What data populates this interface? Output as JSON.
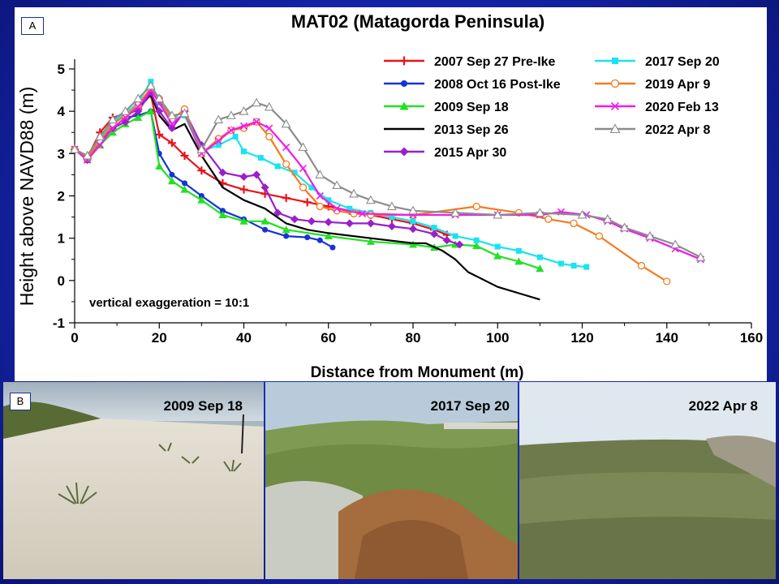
{
  "panels": {
    "a_label": "A",
    "b_label": "B"
  },
  "chart_data": {
    "type": "line",
    "title": "MAT02 (Matagorda Peninsula)",
    "xlabel": "Distance from Monument (m)",
    "ylabel": "Height above NAVD88 (m)",
    "xlim": [
      0,
      160
    ],
    "ylim": [
      -1,
      5
    ],
    "xticks": [
      "0",
      "20",
      "40",
      "60",
      "80",
      "100",
      "120",
      "140",
      "160"
    ],
    "yticks": [
      "-1",
      "0",
      "1",
      "2",
      "3",
      "4",
      "5"
    ],
    "annotation": "vertical exaggeration = 10:1",
    "series": [
      {
        "name": "2007 Sep 27 Pre-Ike",
        "color": "#e8141c",
        "marker": "plus",
        "x": [
          0,
          3,
          6,
          9,
          12,
          15,
          18,
          20,
          23,
          26,
          30,
          35,
          40,
          45,
          50,
          55,
          60,
          65,
          70,
          75,
          80,
          85,
          88
        ],
        "y": [
          3.1,
          2.9,
          3.5,
          3.85,
          3.95,
          4.05,
          4.4,
          3.45,
          3.25,
          2.95,
          2.6,
          2.3,
          2.15,
          2.05,
          1.95,
          1.85,
          1.75,
          1.65,
          1.55,
          1.45,
          1.35,
          1.2,
          1.08
        ]
      },
      {
        "name": "2008 Oct 16 Post-Ike",
        "color": "#1433d8",
        "marker": "circle",
        "x": [
          0,
          3,
          6,
          9,
          12,
          15,
          18,
          20,
          23,
          26,
          30,
          35,
          40,
          45,
          50,
          55,
          58,
          61
        ],
        "y": [
          3.1,
          2.85,
          3.3,
          3.8,
          3.85,
          3.9,
          4.0,
          3.0,
          2.5,
          2.3,
          2.0,
          1.65,
          1.45,
          1.2,
          1.05,
          1.02,
          0.95,
          0.78
        ]
      },
      {
        "name": "2009 Sep 18",
        "color": "#22e022",
        "marker": "triangle",
        "x": [
          0,
          3,
          6,
          9,
          12,
          15,
          18,
          20,
          23,
          26,
          30,
          35,
          40,
          45,
          50,
          60,
          70,
          80,
          85,
          90,
          95,
          100,
          105,
          110
        ],
        "y": [
          3.1,
          2.85,
          3.2,
          3.5,
          3.7,
          3.85,
          4.0,
          2.7,
          2.35,
          2.15,
          1.9,
          1.55,
          1.4,
          1.4,
          1.2,
          1.05,
          0.92,
          0.85,
          0.78,
          0.85,
          0.82,
          0.58,
          0.45,
          0.28
        ]
      },
      {
        "name": "2013 Sep 26",
        "color": "#000000",
        "marker": "none",
        "x": [
          0,
          3,
          6,
          9,
          12,
          15,
          18,
          20,
          23,
          26,
          30,
          35,
          40,
          45,
          50,
          55,
          60,
          70,
          80,
          83,
          87,
          90,
          93,
          97,
          100,
          105,
          110
        ],
        "y": [
          3.1,
          2.9,
          3.35,
          3.75,
          3.9,
          4.05,
          4.4,
          3.9,
          3.55,
          3.7,
          2.95,
          2.2,
          1.9,
          1.7,
          1.35,
          1.2,
          1.12,
          1.0,
          0.88,
          0.88,
          0.7,
          0.5,
          0.2,
          0.0,
          -0.15,
          -0.3,
          -0.45
        ]
      },
      {
        "name": "2015 Apr 30",
        "color": "#9a1fc9",
        "marker": "diamond",
        "x": [
          0,
          3,
          6,
          9,
          12,
          15,
          18,
          20,
          23,
          26,
          30,
          35,
          40,
          43,
          45,
          48,
          52,
          56,
          60,
          65,
          70,
          75,
          80,
          85,
          88,
          91
        ],
        "y": [
          3.1,
          2.85,
          3.3,
          3.6,
          3.75,
          4.0,
          4.45,
          4.0,
          3.6,
          4.0,
          3.2,
          2.55,
          2.45,
          2.5,
          2.2,
          1.6,
          1.45,
          1.4,
          1.38,
          1.35,
          1.35,
          1.28,
          1.22,
          1.1,
          0.95,
          0.85
        ]
      },
      {
        "name": "2017 Sep 20",
        "color": "#19e3f0",
        "marker": "square",
        "x": [
          0,
          3,
          6,
          9,
          12,
          15,
          18,
          20,
          23,
          26,
          30,
          34,
          38,
          40,
          44,
          48,
          52,
          56,
          60,
          65,
          70,
          75,
          80,
          85,
          90,
          95,
          100,
          105,
          110,
          115,
          118,
          121
        ],
        "y": [
          3.1,
          2.9,
          3.35,
          3.75,
          3.95,
          4.2,
          4.7,
          4.2,
          3.8,
          3.9,
          3.05,
          3.2,
          3.4,
          3.05,
          2.9,
          2.7,
          2.55,
          2.2,
          1.9,
          1.7,
          1.6,
          1.5,
          1.4,
          1.25,
          1.05,
          0.95,
          0.8,
          0.7,
          0.55,
          0.4,
          0.35,
          0.32
        ]
      },
      {
        "name": "2019 Apr 9",
        "color": "#f47a1e",
        "marker": "circle-open",
        "x": [
          0,
          3,
          6,
          9,
          12,
          15,
          18,
          20,
          23,
          26,
          30,
          34,
          37,
          40,
          43,
          46,
          50,
          54,
          58,
          62,
          66,
          70,
          80,
          95,
          105,
          112,
          118,
          124,
          134,
          140
        ],
        "y": [
          3.1,
          2.9,
          3.3,
          3.7,
          3.9,
          4.15,
          4.55,
          4.3,
          3.8,
          4.05,
          3.0,
          3.35,
          3.55,
          3.6,
          3.75,
          3.4,
          2.75,
          2.2,
          1.75,
          1.65,
          1.58,
          1.55,
          1.55,
          1.75,
          1.6,
          1.45,
          1.35,
          1.05,
          0.35,
          -0.02
        ]
      },
      {
        "name": "2020 Feb 13",
        "color": "#f01ce8",
        "marker": "x",
        "x": [
          0,
          3,
          6,
          9,
          12,
          15,
          18,
          20,
          23,
          26,
          30,
          34,
          37,
          40,
          43,
          46,
          50,
          54,
          58,
          62,
          68,
          80,
          90,
          100,
          110,
          115,
          121,
          126,
          130,
          136,
          142,
          148
        ],
        "y": [
          3.1,
          2.85,
          3.2,
          3.6,
          3.85,
          4.1,
          4.5,
          4.2,
          3.7,
          3.95,
          3.0,
          3.3,
          3.55,
          3.65,
          3.75,
          3.6,
          3.15,
          2.65,
          2.0,
          1.7,
          1.58,
          1.55,
          1.55,
          1.55,
          1.55,
          1.62,
          1.55,
          1.4,
          1.22,
          1.0,
          0.75,
          0.5
        ]
      },
      {
        "name": "2022 Apr 8",
        "color": "#8c8c8c",
        "marker": "triangle-open",
        "x": [
          0,
          3,
          6,
          9,
          12,
          15,
          18,
          20,
          23,
          26,
          30,
          34,
          37,
          40,
          43,
          46,
          50,
          54,
          58,
          62,
          66,
          70,
          75,
          80,
          90,
          100,
          110,
          120,
          126,
          130,
          136,
          142,
          148
        ],
        "y": [
          3.1,
          2.95,
          3.4,
          3.8,
          4.0,
          4.3,
          4.6,
          4.3,
          3.9,
          3.95,
          3.1,
          3.8,
          3.9,
          4.0,
          4.2,
          4.1,
          3.7,
          3.15,
          2.5,
          2.25,
          2.05,
          1.9,
          1.75,
          1.65,
          1.6,
          1.55,
          1.6,
          1.55,
          1.45,
          1.25,
          1.05,
          0.85,
          0.55
        ]
      }
    ]
  },
  "photos": [
    {
      "label": "2009 Sep 18"
    },
    {
      "label": "2017 Sep 20"
    },
    {
      "label": "2022 Apr 8"
    }
  ]
}
